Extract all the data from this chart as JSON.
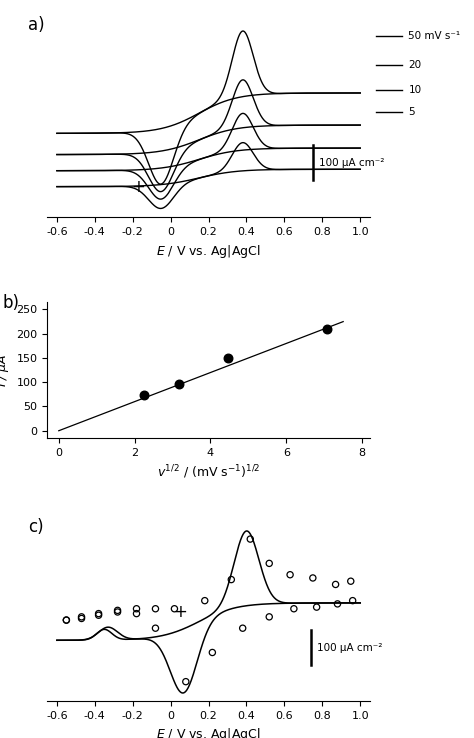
{
  "panel_a": {
    "label": "a)",
    "xlabel": "$E$ / V vs. Ag|AgCl",
    "xlim": [
      -0.65,
      1.05
    ],
    "xticks": [
      -0.6,
      -0.4,
      -0.2,
      0.0,
      0.2,
      0.4,
      0.6,
      0.8,
      1.0
    ],
    "xtick_labels": [
      "-0.6",
      "-0.4",
      "-0.2",
      "0",
      "0.2",
      "0.4",
      "0.6",
      "0.8",
      "1.0"
    ],
    "legend_labels": [
      "50 mV s⁻¹",
      "20",
      "10",
      "5"
    ],
    "scalebar_label": "100 μA cm⁻²",
    "plus_x": -0.17,
    "plus_y": 0.08,
    "cv_scales": [
      1.0,
      0.73,
      0.56,
      0.43
    ]
  },
  "panel_b": {
    "label": "b)",
    "xlim": [
      -0.3,
      8.2
    ],
    "ylim": [
      -15,
      265
    ],
    "xticks": [
      0,
      2,
      4,
      6,
      8
    ],
    "yticks": [
      0,
      50,
      100,
      150,
      200,
      250
    ],
    "points_x": [
      2.24,
      3.16,
      4.47,
      7.07
    ],
    "points_y": [
      73,
      97,
      150,
      210
    ],
    "fit_x0": 0.0,
    "fit_x1": 7.5,
    "fit_slope": 30.0
  },
  "panel_c": {
    "label": "c)",
    "xlabel": "$E$ / V vs. Ag|AgCl",
    "xlim": [
      -0.65,
      1.05
    ],
    "xticks": [
      -0.6,
      -0.4,
      -0.2,
      0.0,
      0.2,
      0.4,
      0.6,
      0.8,
      1.0
    ],
    "xtick_labels": [
      "-0.6",
      "-0.4",
      "-0.2",
      "0",
      "0.2",
      "0.4",
      "0.6",
      "0.8",
      "1.0"
    ],
    "scalebar_label": "100 μA cm⁻²",
    "plus_x": 0.05,
    "plus_y": 0.15,
    "circles_fwd_x": [
      -0.55,
      -0.47,
      -0.38,
      -0.28,
      -0.18,
      -0.08,
      0.02,
      0.18,
      0.32,
      0.42,
      0.52,
      0.63,
      0.75,
      0.87,
      0.95
    ],
    "circles_fwd_y": [
      0.1,
      0.12,
      0.14,
      0.16,
      0.17,
      0.17,
      0.17,
      0.22,
      0.35,
      0.6,
      0.45,
      0.38,
      0.36,
      0.32,
      0.34
    ],
    "circles_rev_x": [
      -0.55,
      -0.47,
      -0.38,
      -0.28,
      -0.18,
      -0.08,
      0.08,
      0.22,
      0.38,
      0.52,
      0.65,
      0.77,
      0.88,
      0.96
    ],
    "circles_rev_y": [
      0.1,
      0.11,
      0.13,
      0.15,
      0.14,
      0.05,
      -0.28,
      -0.1,
      0.05,
      0.12,
      0.17,
      0.18,
      0.2,
      0.22
    ]
  }
}
